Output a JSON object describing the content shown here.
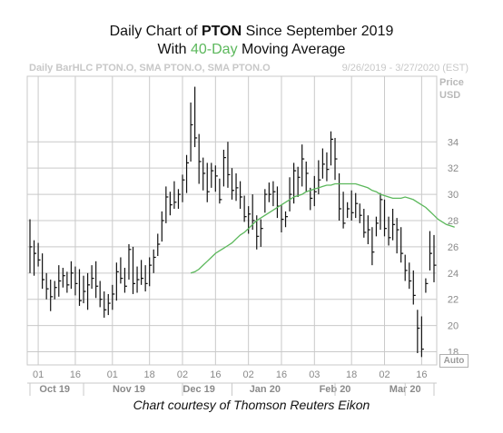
{
  "header": {
    "line1_prefix": "Daily Chart of ",
    "line1_ticker": "PTON",
    "line1_suffix": " Since September 2019",
    "line2_prefix": "With ",
    "line2_ma": "40-Day",
    "line2_suffix": " Moving Average",
    "source_left": "Daily BarHLC PTON.O, SMA PTON.O, SMA PTON.O",
    "source_right": "9/26/2019 - 3/27/2020 (EST)",
    "price_label": "Price",
    "currency_label": "USD",
    "auto_label": "Auto",
    "credit": "Chart courtesy of Thomson Reuters Eikon"
  },
  "colors": {
    "bars": "#111111",
    "moving_average": "#5cb85c",
    "grid": "#c9c9c9",
    "axis_text": "#8a8a8a"
  },
  "chart_data": {
    "type": "ohlc-bar",
    "ylim": [
      17,
      39
    ],
    "yticks": [
      18,
      20,
      22,
      24,
      26,
      28,
      30,
      32,
      34
    ],
    "x_tick_labels": [
      "01",
      "16",
      "01",
      "18",
      "02",
      "16",
      "02",
      "16",
      "03",
      "18",
      "02",
      "16"
    ],
    "month_labels": [
      "Oct 19",
      "Nov 19",
      "Dec 19",
      "Jan 20",
      "Feb 20",
      "Mar 20"
    ],
    "grid": true,
    "series": [
      {
        "kind": "hlc_bars",
        "values": [
          [
            28.1,
            24.0,
            26.0
          ],
          [
            26.5,
            23.8,
            25.5
          ],
          [
            26.3,
            24.5,
            25.0
          ],
          [
            25.5,
            22.8,
            23.5
          ],
          [
            24.0,
            22.0,
            22.8
          ],
          [
            23.5,
            21.1,
            22.2
          ],
          [
            23.4,
            22.0,
            22.9
          ],
          [
            24.6,
            22.2,
            23.4
          ],
          [
            24.4,
            22.9,
            23.8
          ],
          [
            24.1,
            22.5,
            23.1
          ],
          [
            24.9,
            22.8,
            24.0
          ],
          [
            24.5,
            22.3,
            23.2
          ],
          [
            24.3,
            21.5,
            21.9
          ],
          [
            23.8,
            21.7,
            22.6
          ],
          [
            24.0,
            21.2,
            23.1
          ],
          [
            24.6,
            22.8,
            23.6
          ],
          [
            24.9,
            22.1,
            23.0
          ],
          [
            23.4,
            21.4,
            22.0
          ],
          [
            22.6,
            20.6,
            21.2
          ],
          [
            22.4,
            20.8,
            21.7
          ],
          [
            23.1,
            21.2,
            22.4
          ],
          [
            24.8,
            21.9,
            24.1
          ],
          [
            25.2,
            23.2,
            23.6
          ],
          [
            24.4,
            22.5,
            23.0
          ],
          [
            26.2,
            23.5,
            25.8
          ],
          [
            26.0,
            22.4,
            23.2
          ],
          [
            24.5,
            22.5,
            23.5
          ],
          [
            25.0,
            23.1,
            23.6
          ],
          [
            24.6,
            22.6,
            23.2
          ],
          [
            25.2,
            23.0,
            24.6
          ],
          [
            25.8,
            24.0,
            25.2
          ],
          [
            27.0,
            25.3,
            26.2
          ],
          [
            28.7,
            26.4,
            28.0
          ],
          [
            30.6,
            27.8,
            29.8
          ],
          [
            30.2,
            28.4,
            29.2
          ],
          [
            31.0,
            28.9,
            29.4
          ],
          [
            30.4,
            28.9,
            30.0
          ],
          [
            31.5,
            29.4,
            31.1
          ],
          [
            33.0,
            30.1,
            32.4
          ],
          [
            37.0,
            32.5,
            35.3
          ],
          [
            38.2,
            33.6,
            34.3
          ],
          [
            34.6,
            30.8,
            32.5
          ],
          [
            32.8,
            30.3,
            31.6
          ],
          [
            32.4,
            29.4,
            30.2
          ],
          [
            32.4,
            30.5,
            31.8
          ],
          [
            32.2,
            30.2,
            31.4
          ],
          [
            31.2,
            29.3,
            29.6
          ],
          [
            33.4,
            30.6,
            32.8
          ],
          [
            34.0,
            30.5,
            31.5
          ],
          [
            32.0,
            29.6,
            30.3
          ],
          [
            31.6,
            29.5,
            30.5
          ],
          [
            31.0,
            28.9,
            29.8
          ],
          [
            29.9,
            27.9,
            28.3
          ],
          [
            29.1,
            27.0,
            28.5
          ],
          [
            30.0,
            27.3,
            28.0
          ],
          [
            28.4,
            25.8,
            26.8
          ],
          [
            28.1,
            26.0,
            27.4
          ],
          [
            30.4,
            28.6,
            30.0
          ],
          [
            30.9,
            29.4,
            30.0
          ],
          [
            31.0,
            29.1,
            30.2
          ],
          [
            30.6,
            28.2,
            29.1
          ],
          [
            29.2,
            27.1,
            28.1
          ],
          [
            28.7,
            27.5,
            28.3
          ],
          [
            31.3,
            28.7,
            30.0
          ],
          [
            32.4,
            29.3,
            31.8
          ],
          [
            32.1,
            29.8,
            31.3
          ],
          [
            33.8,
            30.6,
            32.7
          ],
          [
            32.5,
            30.2,
            31.6
          ],
          [
            30.5,
            28.8,
            29.7
          ],
          [
            31.4,
            29.1,
            30.2
          ],
          [
            32.6,
            30.0,
            31.1
          ],
          [
            33.5,
            31.2,
            32.3
          ],
          [
            33.2,
            31.0,
            31.9
          ],
          [
            34.8,
            32.2,
            34.2
          ],
          [
            34.3,
            31.1,
            32.7
          ],
          [
            31.6,
            28.0,
            28.9
          ],
          [
            30.2,
            27.4,
            27.8
          ],
          [
            29.4,
            28.2,
            28.9
          ],
          [
            30.3,
            28.0,
            28.6
          ],
          [
            30.1,
            28.2,
            29.3
          ],
          [
            29.3,
            27.8,
            28.4
          ],
          [
            28.9,
            26.7,
            27.1
          ],
          [
            28.4,
            26.2,
            27.3
          ],
          [
            27.5,
            24.6,
            25.6
          ],
          [
            28.3,
            26.8,
            27.8
          ],
          [
            30.1,
            27.3,
            29.6
          ],
          [
            29.6,
            26.8,
            27.4
          ],
          [
            28.3,
            26.1,
            26.7
          ],
          [
            28.9,
            26.5,
            27.7
          ],
          [
            28.2,
            25.5,
            27.3
          ],
          [
            27.5,
            24.8,
            25.5
          ],
          [
            25.4,
            23.4,
            24.2
          ],
          [
            24.8,
            22.8,
            23.4
          ],
          [
            24.2,
            21.6,
            22.3
          ],
          [
            21.2,
            17.9,
            19.8
          ],
          [
            20.7,
            17.6,
            18.2
          ],
          [
            23.6,
            22.5,
            23.2
          ],
          [
            27.2,
            24.2,
            25.5
          ],
          [
            26.9,
            23.3,
            24.6
          ]
        ]
      },
      {
        "kind": "line",
        "name": "SMA",
        "start_index": 39,
        "values": [
          24.0,
          24.1,
          24.3,
          24.6,
          24.9,
          25.2,
          25.5,
          25.7,
          25.9,
          26.1,
          26.3,
          26.6,
          26.9,
          27.1,
          27.4,
          27.7,
          28.0,
          28.2,
          28.4,
          28.6,
          28.8,
          29.0,
          29.2,
          29.4,
          29.6,
          29.8,
          29.9,
          30.0,
          30.2,
          30.3,
          30.4,
          30.5,
          30.6,
          30.7,
          30.7,
          30.8,
          30.8,
          30.8,
          30.8,
          30.8,
          30.8,
          30.7,
          30.6,
          30.5,
          30.3,
          30.2,
          30.0,
          29.9,
          29.8,
          29.7,
          29.7,
          29.7,
          29.8,
          29.7,
          29.6,
          29.4,
          29.2,
          29.0,
          28.7,
          28.4,
          28.1,
          27.9,
          27.7,
          27.6,
          27.5
        ]
      }
    ]
  }
}
